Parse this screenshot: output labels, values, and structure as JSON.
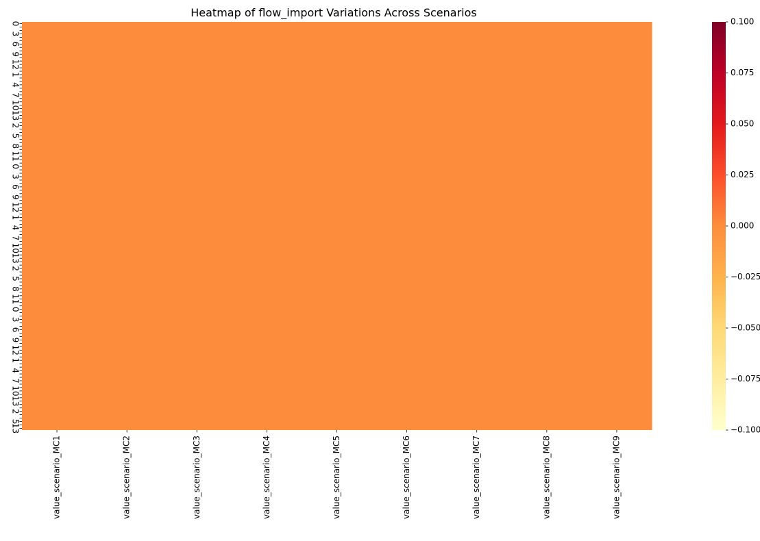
{
  "chart_data": {
    "type": "heatmap",
    "title": "Heatmap of flow_import Variations Across Scenarios",
    "xlabel": "",
    "ylabel": "",
    "columns": [
      "value_scenario_MC1",
      "value_scenario_MC2",
      "value_scenario_MC3",
      "value_scenario_MC4",
      "value_scenario_MC5",
      "value_scenario_MC6",
      "value_scenario_MC7",
      "value_scenario_MC8",
      "value_scenario_MC9"
    ],
    "row_count_approx": 120,
    "row_tick_labels_legible": [
      "0",
      "13"
    ],
    "cell_value": 0.0,
    "colorbar": {
      "colormap": "YlOrRd",
      "range": [
        -0.1,
        0.1
      ],
      "ticks": [
        "0.100",
        "0.075",
        "0.050",
        "0.025",
        "0.000",
        "−0.025",
        "−0.050",
        "−0.075",
        "−0.100"
      ],
      "colors": {
        "-0.100": "#ffffcc",
        "-0.075": "#ffeda0",
        "-0.050": "#fed976",
        "-0.025": "#feb24c",
        "0.000": "#fd8d3c",
        "0.025": "#fc4e2a",
        "0.050": "#e31a1c",
        "0.075": "#bd0026",
        "0.100": "#800026"
      }
    },
    "legend": "right (colorbar)",
    "grid": false
  }
}
